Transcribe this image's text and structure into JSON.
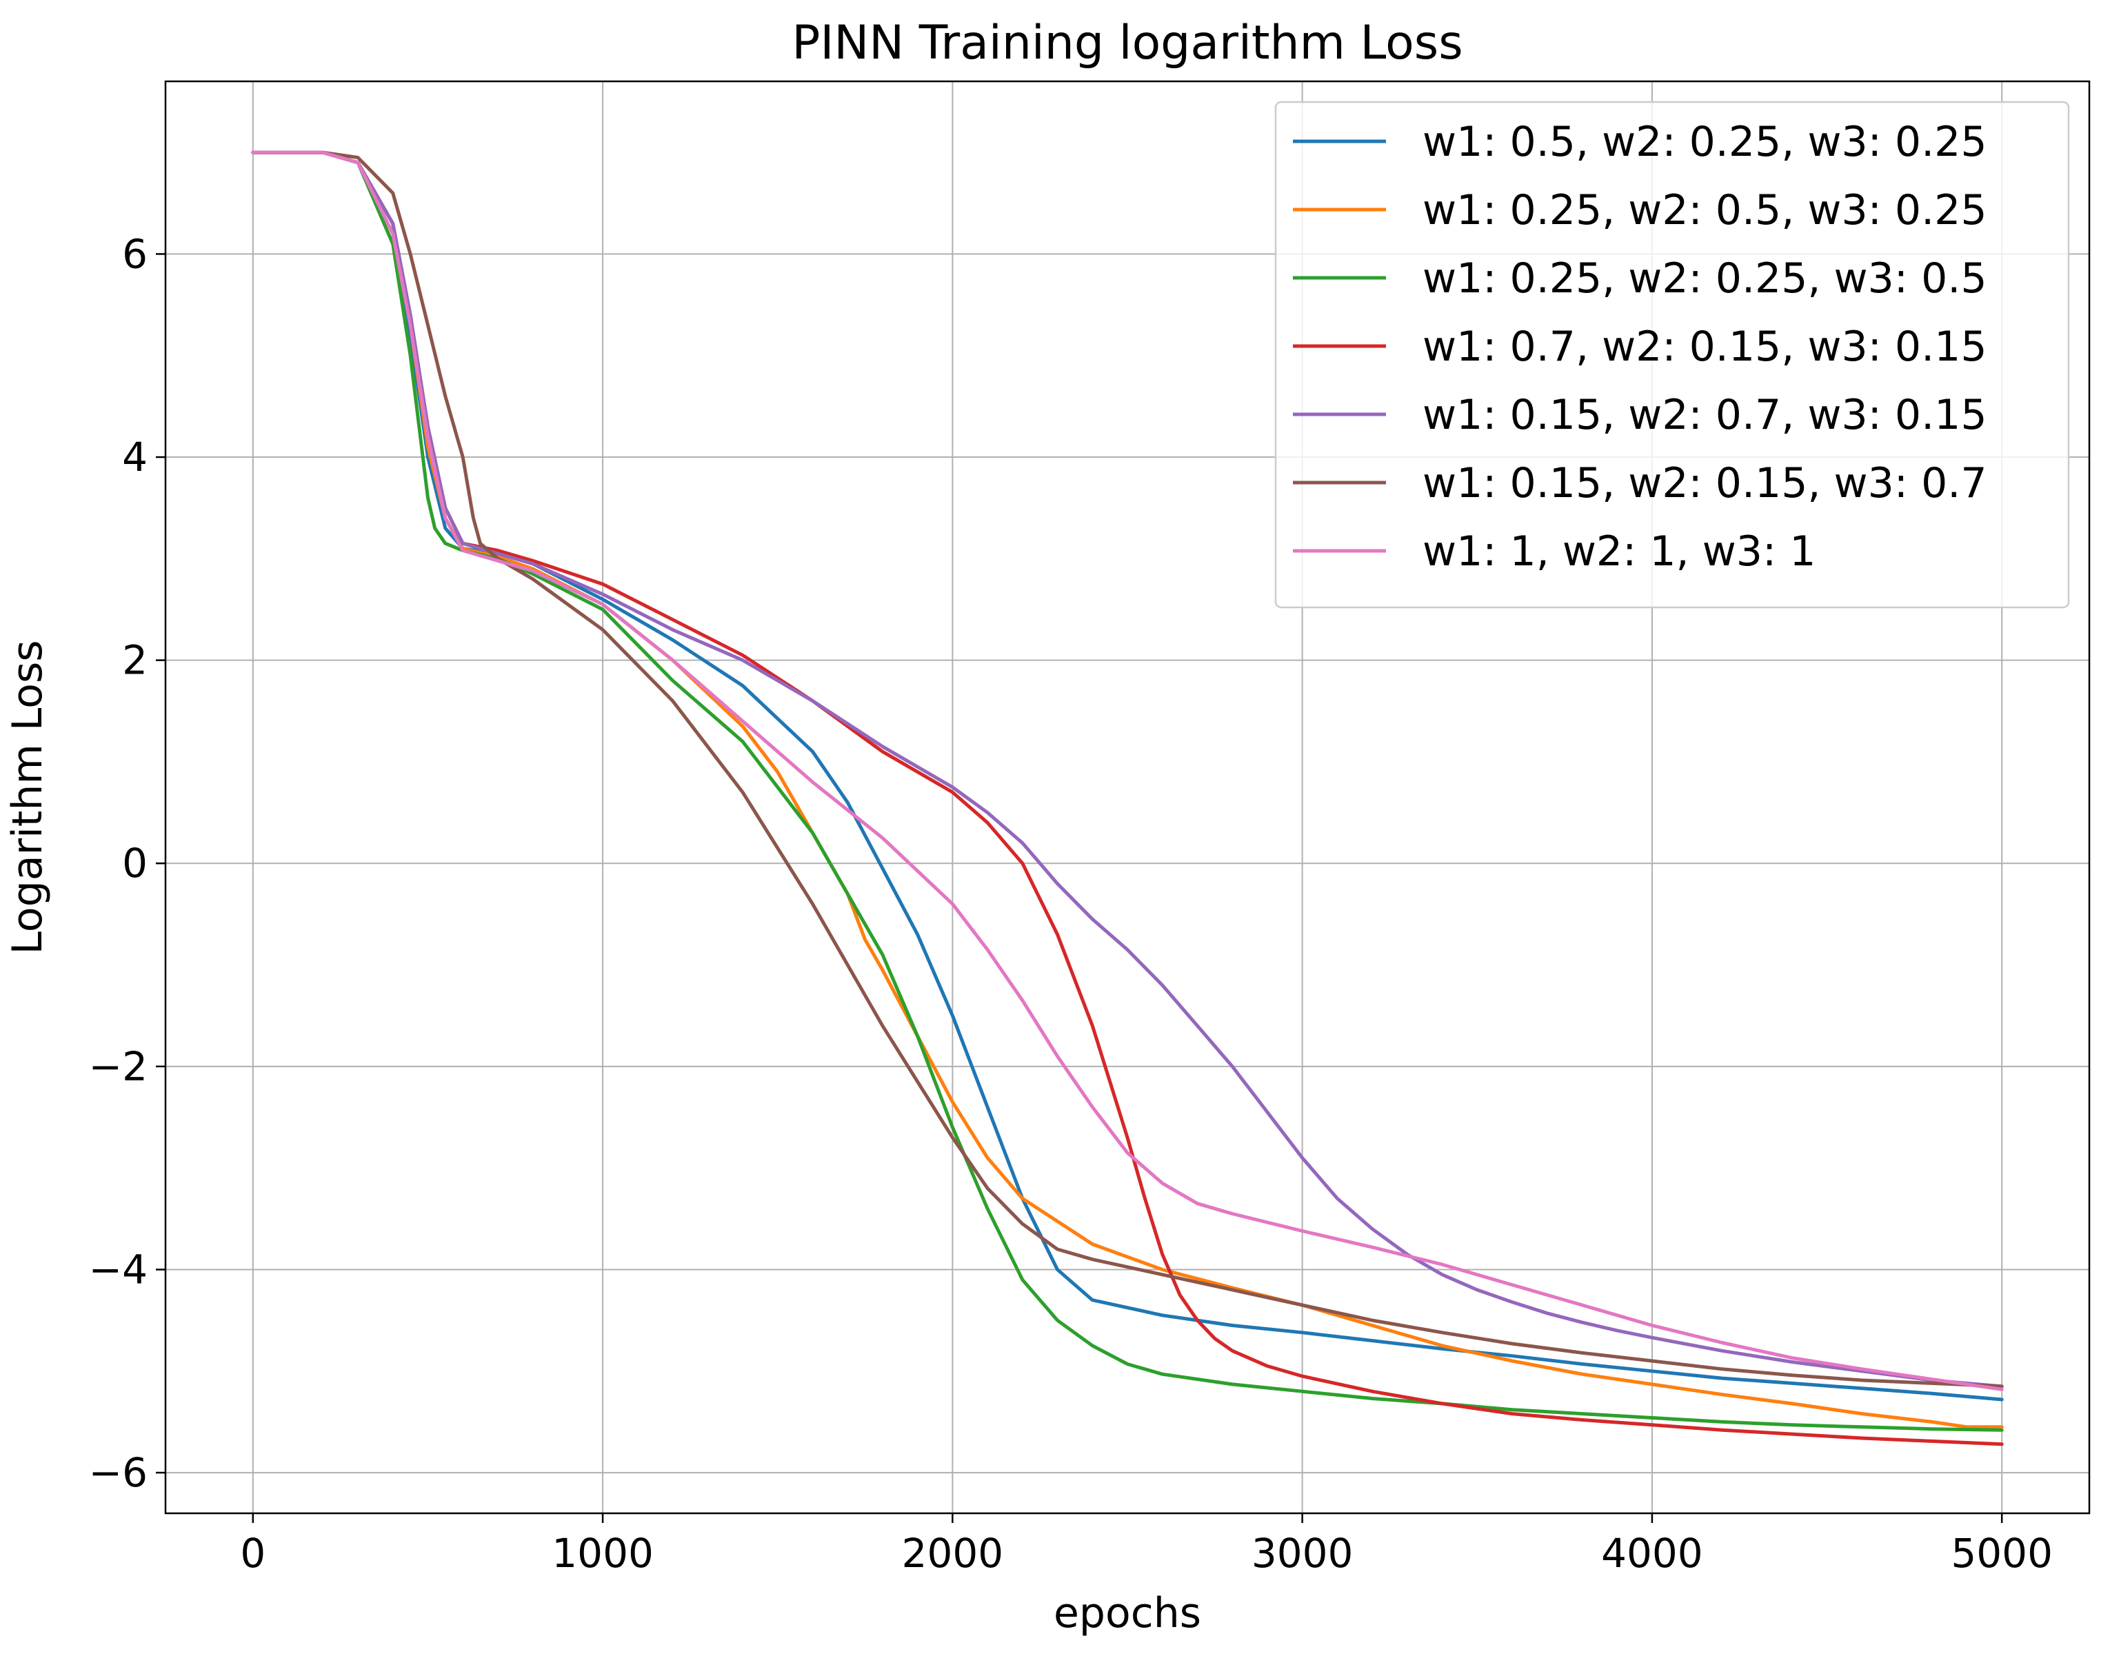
{
  "chart_data": {
    "type": "line",
    "title": "PINN Training logarithm Loss",
    "xlabel": "epochs",
    "ylabel": "Logarithm Loss",
    "xlim": [
      -250,
      5250
    ],
    "ylim": [
      -6.4,
      7.7
    ],
    "xticks": [
      0,
      1000,
      2000,
      3000,
      4000,
      5000
    ],
    "xtick_labels": [
      "0",
      "1000",
      "2000",
      "3000",
      "4000",
      "5000"
    ],
    "yticks": [
      -6,
      -4,
      -2,
      0,
      2,
      4,
      6
    ],
    "ytick_labels": [
      "−6",
      "−4",
      "−2",
      "0",
      "2",
      "4",
      "6"
    ],
    "grid": true,
    "legend_position": "top-right",
    "series": [
      {
        "name": "w1: 0.5, w2: 0.25, w3: 0.25",
        "color": "#1f77b4",
        "x": [
          0,
          200,
          300,
          400,
          450,
          500,
          550,
          600,
          700,
          800,
          1000,
          1200,
          1400,
          1600,
          1700,
          1800,
          1900,
          2000,
          2100,
          2200,
          2300,
          2400,
          2600,
          2800,
          3000,
          3200,
          3400,
          3600,
          3800,
          4000,
          4200,
          4400,
          4600,
          4800,
          5000
        ],
        "y": [
          7.0,
          7.0,
          6.9,
          6.3,
          5.2,
          4.0,
          3.3,
          3.1,
          3.05,
          2.95,
          2.6,
          2.2,
          1.75,
          1.1,
          0.6,
          -0.05,
          -0.7,
          -1.5,
          -2.4,
          -3.3,
          -4.0,
          -4.3,
          -4.45,
          -4.55,
          -4.62,
          -4.7,
          -4.78,
          -4.85,
          -4.93,
          -5.0,
          -5.07,
          -5.12,
          -5.17,
          -5.22,
          -5.28
        ]
      },
      {
        "name": "w1: 0.25, w2: 0.5, w3: 0.25",
        "color": "#ff7f0e",
        "x": [
          0,
          200,
          300,
          400,
          450,
          500,
          550,
          600,
          700,
          800,
          1000,
          1200,
          1400,
          1500,
          1600,
          1700,
          1750,
          1800,
          1900,
          2000,
          2100,
          2200,
          2400,
          2600,
          2800,
          3000,
          3200,
          3400,
          3600,
          3800,
          4000,
          4200,
          4400,
          4600,
          4800,
          4900,
          5000
        ],
        "y": [
          7.0,
          7.0,
          6.9,
          6.3,
          5.3,
          4.1,
          3.4,
          3.1,
          3.02,
          2.9,
          2.55,
          2.0,
          1.35,
          0.9,
          0.3,
          -0.3,
          -0.75,
          -1.05,
          -1.7,
          -2.35,
          -2.9,
          -3.3,
          -3.75,
          -4.0,
          -4.18,
          -4.35,
          -4.55,
          -4.75,
          -4.9,
          -5.03,
          -5.13,
          -5.23,
          -5.32,
          -5.42,
          -5.5,
          -5.55,
          -5.55
        ]
      },
      {
        "name": "w1: 0.25, w2: 0.25, w3: 0.5",
        "color": "#2ca02c",
        "x": [
          0,
          200,
          300,
          400,
          450,
          500,
          520,
          550,
          600,
          700,
          800,
          1000,
          1200,
          1400,
          1600,
          1800,
          1900,
          2000,
          2100,
          2200,
          2300,
          2400,
          2500,
          2600,
          2800,
          3000,
          3200,
          3400,
          3600,
          3800,
          4000,
          4200,
          4400,
          4600,
          4800,
          5000
        ],
        "y": [
          7.0,
          7.0,
          6.9,
          6.1,
          5.0,
          3.6,
          3.3,
          3.15,
          3.08,
          3.0,
          2.85,
          2.5,
          1.8,
          1.2,
          0.3,
          -0.9,
          -1.7,
          -2.6,
          -3.4,
          -4.1,
          -4.5,
          -4.75,
          -4.93,
          -5.03,
          -5.13,
          -5.2,
          -5.27,
          -5.32,
          -5.38,
          -5.42,
          -5.46,
          -5.5,
          -5.53,
          -5.55,
          -5.57,
          -5.58
        ]
      },
      {
        "name": "w1: 0.7, w2: 0.15, w3: 0.15",
        "color": "#d62728",
        "x": [
          0,
          200,
          300,
          400,
          450,
          500,
          550,
          600,
          700,
          800,
          1000,
          1200,
          1400,
          1600,
          1800,
          2000,
          2100,
          2200,
          2300,
          2400,
          2500,
          2550,
          2600,
          2650,
          2700,
          2750,
          2800,
          2900,
          3000,
          3200,
          3400,
          3600,
          3800,
          4000,
          4200,
          4400,
          4600,
          4800,
          5000
        ],
        "y": [
          7.0,
          7.0,
          6.9,
          6.3,
          5.4,
          4.3,
          3.5,
          3.15,
          3.08,
          2.98,
          2.75,
          2.4,
          2.05,
          1.6,
          1.1,
          0.7,
          0.4,
          0.0,
          -0.7,
          -1.6,
          -2.7,
          -3.3,
          -3.85,
          -4.25,
          -4.5,
          -4.68,
          -4.8,
          -4.95,
          -5.05,
          -5.2,
          -5.32,
          -5.42,
          -5.48,
          -5.53,
          -5.58,
          -5.62,
          -5.66,
          -5.69,
          -5.72
        ]
      },
      {
        "name": "w1: 0.15, w2: 0.7, w3: 0.15",
        "color": "#9467bd",
        "x": [
          0,
          200,
          300,
          400,
          450,
          500,
          550,
          600,
          700,
          800,
          1000,
          1200,
          1400,
          1600,
          1800,
          2000,
          2100,
          2200,
          2300,
          2400,
          2500,
          2600,
          2700,
          2800,
          2900,
          3000,
          3100,
          3200,
          3300,
          3400,
          3500,
          3600,
          3700,
          3800,
          3900,
          4000,
          4200,
          4400,
          4600,
          4800,
          5000
        ],
        "y": [
          7.0,
          7.0,
          6.9,
          6.3,
          5.4,
          4.3,
          3.5,
          3.15,
          3.05,
          2.95,
          2.65,
          2.3,
          2.0,
          1.6,
          1.15,
          0.75,
          0.5,
          0.2,
          -0.2,
          -0.55,
          -0.85,
          -1.2,
          -1.6,
          -2.0,
          -2.45,
          -2.9,
          -3.3,
          -3.6,
          -3.85,
          -4.05,
          -4.2,
          -4.32,
          -4.43,
          -4.52,
          -4.6,
          -4.67,
          -4.8,
          -4.91,
          -5.0,
          -5.09,
          -5.15
        ]
      },
      {
        "name": "w1: 0.15, w2: 0.15, w3: 0.7",
        "color": "#8c564b",
        "x": [
          0,
          200,
          300,
          400,
          450,
          500,
          550,
          600,
          630,
          650,
          700,
          800,
          1000,
          1200,
          1400,
          1600,
          1800,
          2000,
          2100,
          2200,
          2300,
          2400,
          2600,
          2800,
          3000,
          3200,
          3400,
          3600,
          3800,
          4000,
          4200,
          4400,
          4600,
          4800,
          5000
        ],
        "y": [
          7.0,
          7.0,
          6.95,
          6.6,
          6.0,
          5.3,
          4.6,
          4.0,
          3.4,
          3.15,
          3.0,
          2.8,
          2.3,
          1.6,
          0.7,
          -0.4,
          -1.6,
          -2.7,
          -3.2,
          -3.55,
          -3.8,
          -3.9,
          -4.05,
          -4.2,
          -4.35,
          -4.5,
          -4.62,
          -4.73,
          -4.82,
          -4.9,
          -4.98,
          -5.04,
          -5.09,
          -5.12,
          -5.15
        ]
      },
      {
        "name": "w1: 1, w2: 1, w3: 1",
        "color": "#e377c2",
        "x": [
          0,
          200,
          300,
          400,
          450,
          500,
          550,
          600,
          700,
          800,
          1000,
          1200,
          1400,
          1600,
          1800,
          2000,
          2100,
          2200,
          2300,
          2400,
          2500,
          2600,
          2700,
          2800,
          3000,
          3200,
          3400,
          3600,
          3800,
          4000,
          4200,
          4400,
          4600,
          4800,
          5000
        ],
        "y": [
          7.0,
          7.0,
          6.9,
          6.2,
          5.3,
          4.2,
          3.4,
          3.08,
          2.98,
          2.88,
          2.55,
          2.0,
          1.4,
          0.8,
          0.25,
          -0.4,
          -0.85,
          -1.35,
          -1.9,
          -2.4,
          -2.85,
          -3.15,
          -3.35,
          -3.45,
          -3.62,
          -3.78,
          -3.95,
          -4.15,
          -4.35,
          -4.55,
          -4.72,
          -4.87,
          -4.98,
          -5.08,
          -5.18
        ]
      }
    ]
  }
}
